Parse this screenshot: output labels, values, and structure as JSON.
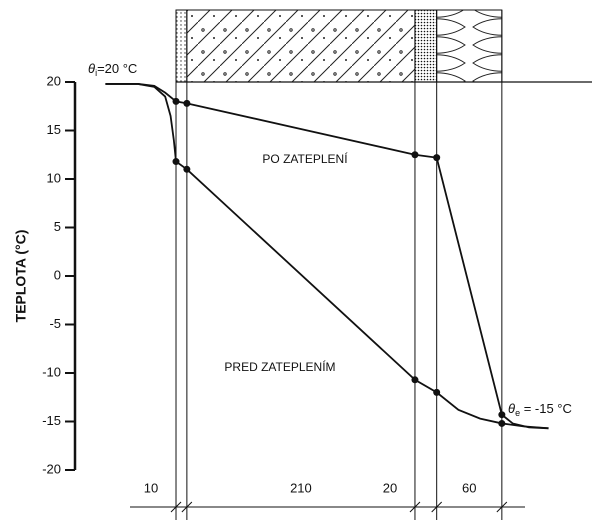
{
  "chart_data": {
    "type": "line",
    "ylabel": "TEPLOTA (°C)",
    "xlim": [
      -93,
      383
    ],
    "ylim": [
      -20,
      20
    ],
    "yticks": [
      -20,
      -15,
      -10,
      -5,
      0,
      5,
      10,
      15,
      20
    ],
    "dimensions": [
      10,
      210,
      20,
      60
    ],
    "color": "#111111",
    "series": [
      {
        "name": "PO ZATEPLENÍ",
        "x": [
          -65,
          -35,
          -20,
          -10,
          0,
          10,
          220,
          240,
          300,
          310,
          325,
          343
        ],
        "values": [
          19.8,
          19.8,
          19.6,
          18.9,
          18,
          17.8,
          12.5,
          12.2,
          -14.3,
          -15.2,
          -15.6,
          -15.7
        ]
      },
      {
        "name": "PRED ZATEPLENÍM",
        "x": [
          -65,
          -35,
          -20,
          -10,
          -5,
          -2,
          0,
          10,
          220,
          240,
          260,
          280,
          300,
          320,
          343
        ],
        "values": [
          19.8,
          19.8,
          19.5,
          18.5,
          16.5,
          14,
          11.8,
          11,
          -10.7,
          -12,
          -13.8,
          -14.7,
          -15.2,
          -15.5,
          -15.7
        ]
      }
    ],
    "annotations": [
      {
        "symbol": "θ",
        "sub": "i",
        "text": "=20 °C"
      },
      {
        "symbol": "θ",
        "sub": "e",
        "text": " = -15 °C"
      }
    ]
  }
}
